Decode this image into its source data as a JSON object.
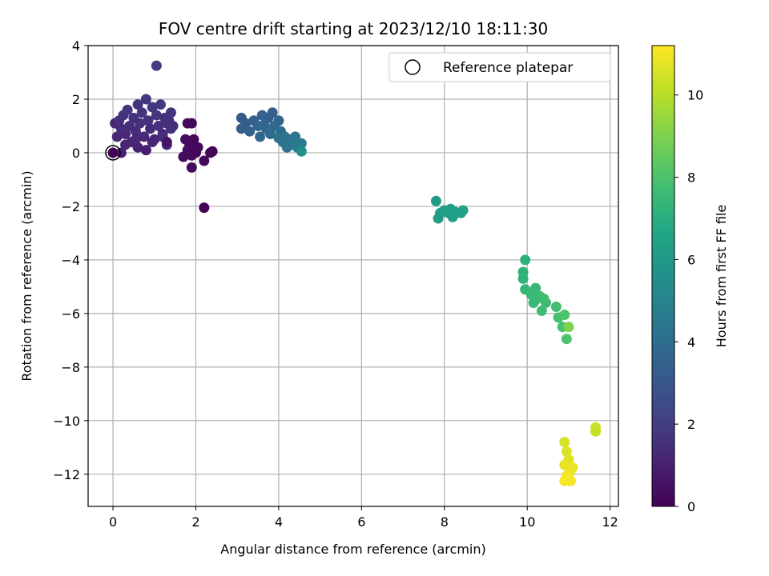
{
  "chart_data": {
    "type": "scatter",
    "title": "FOV centre drift starting at 2023/12/10 18:11:30",
    "xlabel": "Angular distance from reference (arcmin)",
    "ylabel": "Rotation from reference (arcmin)",
    "xlim": [
      -0.6,
      12.2
    ],
    "ylim": [
      -13.2,
      4.0
    ],
    "xticks": [
      0,
      2,
      4,
      6,
      8,
      10,
      12
    ],
    "yticks": [
      4,
      2,
      0,
      -2,
      -4,
      -6,
      -8,
      -10,
      -12
    ],
    "grid": true,
    "legend": {
      "position": "top-right",
      "entries": [
        "Reference platepar"
      ]
    },
    "reference_point": {
      "x": 0,
      "y": 0,
      "label": "Reference platepar"
    },
    "colorbar": {
      "label": "Hours from first FF file",
      "min": 0,
      "max": 11.2,
      "ticks": [
        0,
        2,
        4,
        6,
        8,
        10
      ],
      "colormap": "viridis"
    },
    "points": [
      {
        "x": 0.05,
        "y": 1.1,
        "c": 1.2
      },
      {
        "x": 0.15,
        "y": 1.2,
        "c": 1.5
      },
      {
        "x": 0.2,
        "y": 0.9,
        "c": 1.4
      },
      {
        "x": 0.25,
        "y": 1.4,
        "c": 1.6
      },
      {
        "x": 0.3,
        "y": 0.7,
        "c": 1.3
      },
      {
        "x": 0.35,
        "y": 1.6,
        "c": 1.7
      },
      {
        "x": 0.4,
        "y": 1.0,
        "c": 1.5
      },
      {
        "x": 0.45,
        "y": 0.4,
        "c": 1.2
      },
      {
        "x": 0.5,
        "y": 1.3,
        "c": 1.6
      },
      {
        "x": 0.55,
        "y": 0.8,
        "c": 1.4
      },
      {
        "x": 0.6,
        "y": 0.2,
        "c": 1.1
      },
      {
        "x": 0.65,
        "y": 1.1,
        "c": 1.5
      },
      {
        "x": 0.7,
        "y": 1.5,
        "c": 1.7
      },
      {
        "x": 0.75,
        "y": 0.6,
        "c": 1.3
      },
      {
        "x": 0.8,
        "y": 2.0,
        "c": 1.8
      },
      {
        "x": 0.85,
        "y": 1.2,
        "c": 1.6
      },
      {
        "x": 0.9,
        "y": 0.9,
        "c": 1.4
      },
      {
        "x": 0.95,
        "y": 1.7,
        "c": 1.8
      },
      {
        "x": 1.0,
        "y": 0.5,
        "c": 1.2
      },
      {
        "x": 1.05,
        "y": 1.4,
        "c": 1.7
      },
      {
        "x": 1.1,
        "y": 1.0,
        "c": 1.5
      },
      {
        "x": 1.15,
        "y": 1.8,
        "c": 1.9
      },
      {
        "x": 1.2,
        "y": 0.7,
        "c": 1.3
      },
      {
        "x": 1.25,
        "y": 1.3,
        "c": 1.6
      },
      {
        "x": 1.3,
        "y": 1.1,
        "c": 1.5
      },
      {
        "x": 1.35,
        "y": 1.2,
        "c": 1.6
      },
      {
        "x": 1.4,
        "y": 1.5,
        "c": 1.8
      },
      {
        "x": 1.45,
        "y": 1.0,
        "c": 1.5
      },
      {
        "x": 0.1,
        "y": 0.6,
        "c": 1.3
      },
      {
        "x": 0.3,
        "y": 0.3,
        "c": 1.2
      },
      {
        "x": 0.55,
        "y": 0.5,
        "c": 1.3
      },
      {
        "x": 0.8,
        "y": 0.1,
        "c": 0.9
      },
      {
        "x": 0.2,
        "y": 0.0,
        "c": 1.0
      },
      {
        "x": 1.05,
        "y": 3.25,
        "c": 2.0
      },
      {
        "x": 1.2,
        "y": 0.6,
        "c": 1.4
      },
      {
        "x": 1.3,
        "y": 0.3,
        "c": 1.1
      },
      {
        "x": 0.0,
        "y": 0.0,
        "c": 0.05
      },
      {
        "x": 0.6,
        "y": 1.8,
        "c": 1.6
      },
      {
        "x": 0.95,
        "y": 0.4,
        "c": 1.2
      },
      {
        "x": 1.4,
        "y": 0.9,
        "c": 1.5
      },
      {
        "x": 1.8,
        "y": 1.1,
        "c": 0.3
      },
      {
        "x": 1.9,
        "y": 1.1,
        "c": 0.2
      },
      {
        "x": 1.75,
        "y": 0.5,
        "c": 0.35
      },
      {
        "x": 1.85,
        "y": 0.3,
        "c": 0.3
      },
      {
        "x": 1.8,
        "y": 0.1,
        "c": 0.4
      },
      {
        "x": 1.95,
        "y": 0.5,
        "c": 0.25
      },
      {
        "x": 1.7,
        "y": -0.15,
        "c": 0.3
      },
      {
        "x": 1.9,
        "y": -0.1,
        "c": 0.35
      },
      {
        "x": 2.0,
        "y": 0.0,
        "c": 0.2
      },
      {
        "x": 2.05,
        "y": 0.2,
        "c": 0.3
      },
      {
        "x": 1.9,
        "y": -0.55,
        "c": 0.35
      },
      {
        "x": 2.2,
        "y": -0.3,
        "c": 0.25
      },
      {
        "x": 2.35,
        "y": 0.0,
        "c": 0.1
      },
      {
        "x": 2.4,
        "y": 0.05,
        "c": 0.15
      },
      {
        "x": 2.2,
        "y": -2.05,
        "c": 0.05
      },
      {
        "x": 1.3,
        "y": 0.4,
        "c": 0.6
      },
      {
        "x": 3.1,
        "y": 1.3,
        "c": 3.1
      },
      {
        "x": 3.2,
        "y": 1.1,
        "c": 3.2
      },
      {
        "x": 3.1,
        "y": 0.9,
        "c": 3.3
      },
      {
        "x": 3.3,
        "y": 0.8,
        "c": 3.4
      },
      {
        "x": 3.4,
        "y": 1.2,
        "c": 3.5
      },
      {
        "x": 3.5,
        "y": 1.0,
        "c": 3.6
      },
      {
        "x": 3.55,
        "y": 0.6,
        "c": 3.7
      },
      {
        "x": 3.6,
        "y": 1.4,
        "c": 3.5
      },
      {
        "x": 3.7,
        "y": 0.9,
        "c": 3.8
      },
      {
        "x": 3.75,
        "y": 1.3,
        "c": 3.4
      },
      {
        "x": 3.8,
        "y": 0.7,
        "c": 3.9
      },
      {
        "x": 3.85,
        "y": 1.5,
        "c": 3.3
      },
      {
        "x": 3.9,
        "y": 1.0,
        "c": 3.8
      },
      {
        "x": 4.0,
        "y": 1.2,
        "c": 3.6
      },
      {
        "x": 4.05,
        "y": 0.8,
        "c": 4.0
      },
      {
        "x": 4.1,
        "y": 0.4,
        "c": 4.1
      },
      {
        "x": 4.15,
        "y": 0.6,
        "c": 4.2
      },
      {
        "x": 4.2,
        "y": 0.2,
        "c": 4.3
      },
      {
        "x": 4.3,
        "y": 0.5,
        "c": 4.4
      },
      {
        "x": 4.35,
        "y": 0.3,
        "c": 4.5
      },
      {
        "x": 4.4,
        "y": 0.6,
        "c": 4.4
      },
      {
        "x": 4.45,
        "y": 0.2,
        "c": 4.6
      },
      {
        "x": 4.55,
        "y": 0.35,
        "c": 4.7
      },
      {
        "x": 4.55,
        "y": 0.05,
        "c": 5.5
      },
      {
        "x": 3.65,
        "y": 1.05,
        "c": 3.7
      },
      {
        "x": 4.0,
        "y": 0.55,
        "c": 4.2
      },
      {
        "x": 7.8,
        "y": -1.8,
        "c": 6.1
      },
      {
        "x": 7.85,
        "y": -2.45,
        "c": 6.2
      },
      {
        "x": 7.9,
        "y": -2.25,
        "c": 6.1
      },
      {
        "x": 8.0,
        "y": -2.15,
        "c": 6.2
      },
      {
        "x": 8.1,
        "y": -2.25,
        "c": 6.3
      },
      {
        "x": 8.15,
        "y": -2.1,
        "c": 6.2
      },
      {
        "x": 8.2,
        "y": -2.4,
        "c": 6.3
      },
      {
        "x": 8.25,
        "y": -2.2,
        "c": 6.3
      },
      {
        "x": 8.4,
        "y": -2.25,
        "c": 6.4
      },
      {
        "x": 8.45,
        "y": -2.15,
        "c": 6.4
      },
      {
        "x": 9.9,
        "y": -4.45,
        "c": 7.2
      },
      {
        "x": 9.95,
        "y": -4.0,
        "c": 7.1
      },
      {
        "x": 9.9,
        "y": -4.7,
        "c": 7.3
      },
      {
        "x": 9.95,
        "y": -5.1,
        "c": 7.4
      },
      {
        "x": 10.1,
        "y": -5.3,
        "c": 7.5
      },
      {
        "x": 10.2,
        "y": -5.05,
        "c": 7.4
      },
      {
        "x": 10.2,
        "y": -5.5,
        "c": 7.6
      },
      {
        "x": 10.3,
        "y": -5.35,
        "c": 7.6
      },
      {
        "x": 10.4,
        "y": -5.45,
        "c": 7.7
      },
      {
        "x": 10.35,
        "y": -5.9,
        "c": 7.7
      },
      {
        "x": 10.45,
        "y": -5.6,
        "c": 7.7
      },
      {
        "x": 10.7,
        "y": -5.75,
        "c": 7.8
      },
      {
        "x": 10.75,
        "y": -6.15,
        "c": 7.9
      },
      {
        "x": 10.85,
        "y": -6.5,
        "c": 7.9
      },
      {
        "x": 10.9,
        "y": -6.05,
        "c": 8.0
      },
      {
        "x": 10.95,
        "y": -6.95,
        "c": 8.0
      },
      {
        "x": 11.0,
        "y": -6.5,
        "c": 9.0
      },
      {
        "x": 10.15,
        "y": -5.6,
        "c": 7.5
      },
      {
        "x": 10.9,
        "y": -10.8,
        "c": 10.5
      },
      {
        "x": 10.95,
        "y": -11.15,
        "c": 10.6
      },
      {
        "x": 11.0,
        "y": -11.45,
        "c": 10.7
      },
      {
        "x": 10.9,
        "y": -11.65,
        "c": 10.8
      },
      {
        "x": 11.05,
        "y": -11.85,
        "c": 10.9
      },
      {
        "x": 10.95,
        "y": -12.05,
        "c": 11.0
      },
      {
        "x": 11.1,
        "y": -11.75,
        "c": 10.9
      },
      {
        "x": 10.9,
        "y": -12.25,
        "c": 11.1
      },
      {
        "x": 11.05,
        "y": -12.25,
        "c": 11.1
      },
      {
        "x": 11.0,
        "y": -12.1,
        "c": 11.0
      },
      {
        "x": 11.65,
        "y": -10.25,
        "c": 10.3
      },
      {
        "x": 11.65,
        "y": -10.4,
        "c": 10.2
      }
    ]
  }
}
